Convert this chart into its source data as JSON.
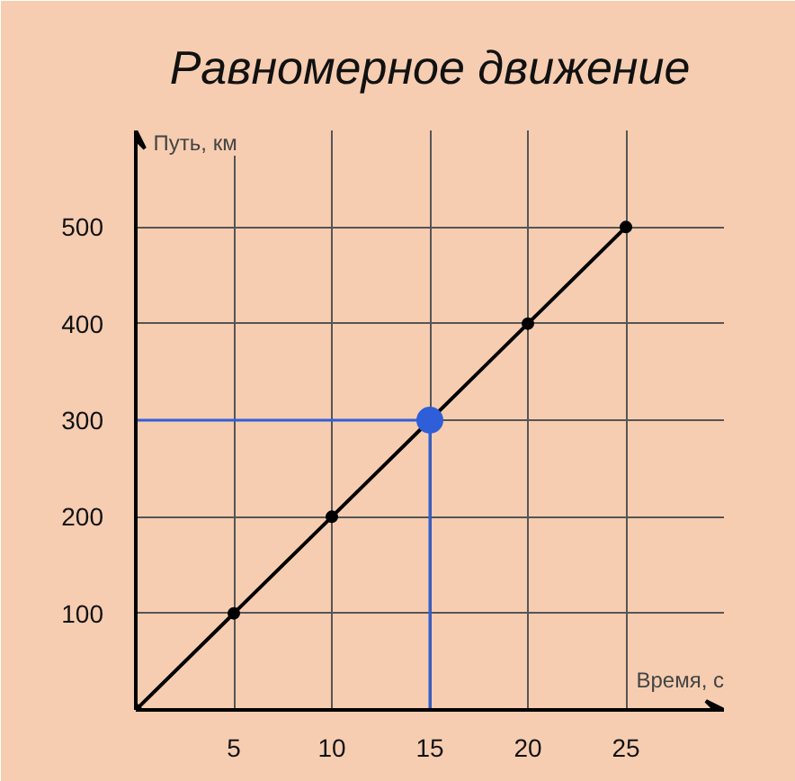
{
  "chart_data": {
    "type": "line",
    "title": "Равномерное движение",
    "xlabel": "Время, с",
    "ylabel": "Путь, км",
    "x": [
      0,
      5,
      10,
      15,
      20,
      25
    ],
    "series": [
      {
        "color": "#000000",
        "values": [
          0,
          100,
          200,
          300,
          400,
          500
        ],
        "marker": "circle"
      },
      {
        "type": "scatter",
        "x": [
          15
        ],
        "color": "#2f5fd8",
        "values": [
          300
        ]
      }
    ],
    "ref_lines": [
      {
        "axis": "x",
        "value": 15,
        "color": "#2f5fd8"
      },
      {
        "axis": "y",
        "value": 300,
        "color": "#2f5fd8"
      }
    ],
    "xlim": [
      0,
      30
    ],
    "ylim": [
      0,
      600
    ],
    "xticks": [
      5,
      10,
      15,
      20,
      25
    ],
    "yticks": [
      100,
      200,
      300,
      400,
      500
    ],
    "grid": true
  }
}
